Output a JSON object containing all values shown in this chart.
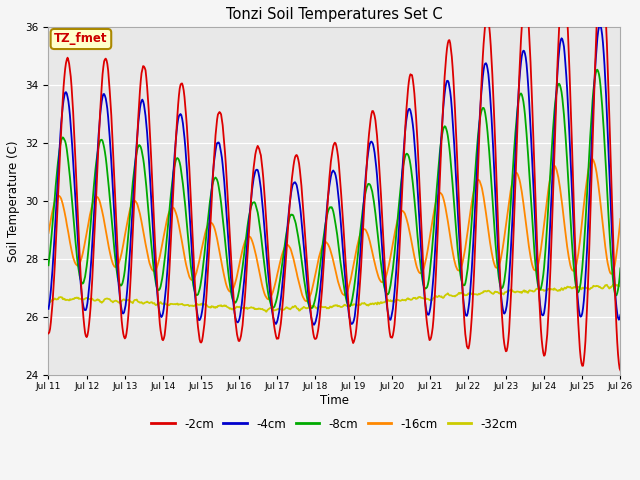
{
  "title": "Tonzi Soil Temperatures Set C",
  "xlabel": "Time",
  "ylabel": "Soil Temperature (C)",
  "ylim": [
    24,
    36
  ],
  "series": {
    "-2cm": {
      "color": "#dd0000",
      "lw": 1.3
    },
    "-4cm": {
      "color": "#0000cc",
      "lw": 1.3
    },
    "-8cm": {
      "color": "#00aa00",
      "lw": 1.3
    },
    "-16cm": {
      "color": "#ff8800",
      "lw": 1.3
    },
    "-32cm": {
      "color": "#cccc00",
      "lw": 1.3
    }
  },
  "legend_order": [
    "-2cm",
    "-4cm",
    "-8cm",
    "-16cm",
    "-32cm"
  ],
  "plot_bg_color": "#e8e8e8",
  "fig_bg_color": "#f5f5f5",
  "label_box_text": "TZ_fmet",
  "label_box_bg": "#ffffcc",
  "label_box_edge": "#aa8800",
  "x_tick_labels": [
    "Jul 11",
    "Jul 12",
    "Jul 13",
    "Jul 14",
    "Jul 15",
    "Jul 16",
    "Jul 17",
    "Jul 18",
    "Jul 19",
    "Jul 20",
    "Jul 21",
    "Jul 22",
    "Jul 23",
    "Jul 24",
    "Jul 25",
    "Jul 26"
  ],
  "yticks": [
    24,
    26,
    28,
    30,
    32,
    34,
    36
  ]
}
